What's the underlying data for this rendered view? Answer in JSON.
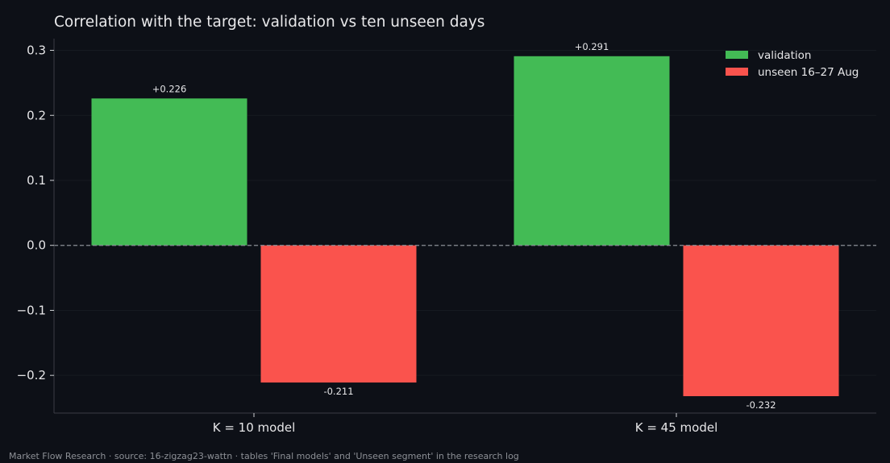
{
  "chart_data": {
    "type": "bar",
    "title": "Correlation with the target: validation vs ten unseen days",
    "categories": [
      "K = 10 model",
      "K = 45 model"
    ],
    "series": [
      {
        "name": "validation",
        "values": [
          0.226,
          0.291
        ],
        "labels": [
          "+0.226",
          "+0.291"
        ],
        "color": "#43bb55"
      },
      {
        "name": "unseen 16–27 Aug",
        "values": [
          -0.211,
          -0.232
        ],
        "labels": [
          "-0.211",
          "-0.232"
        ],
        "color": "#fa534d"
      }
    ],
    "ylim": [
      -0.258,
      0.318
    ],
    "yticks": [
      0.3,
      0.2,
      0.1,
      0.0,
      -0.1,
      -0.2
    ],
    "ytick_labels": [
      "0.3",
      "0.2",
      "0.1",
      "0.0",
      "−0.1",
      "−0.2"
    ],
    "zero_line": "dashed",
    "grid": true,
    "legend_position": "top-right",
    "xlabel": "",
    "ylabel": ""
  },
  "footer": {
    "text": "Market Flow Research · source: 16-zigzag23-wattn · tables 'Final models' and 'Unseen segment' in the research log"
  },
  "colors": {
    "background": "#0d1017",
    "axis": "#3a3d44",
    "grid": "#161a21",
    "zero_line": "#8a8e96"
  }
}
